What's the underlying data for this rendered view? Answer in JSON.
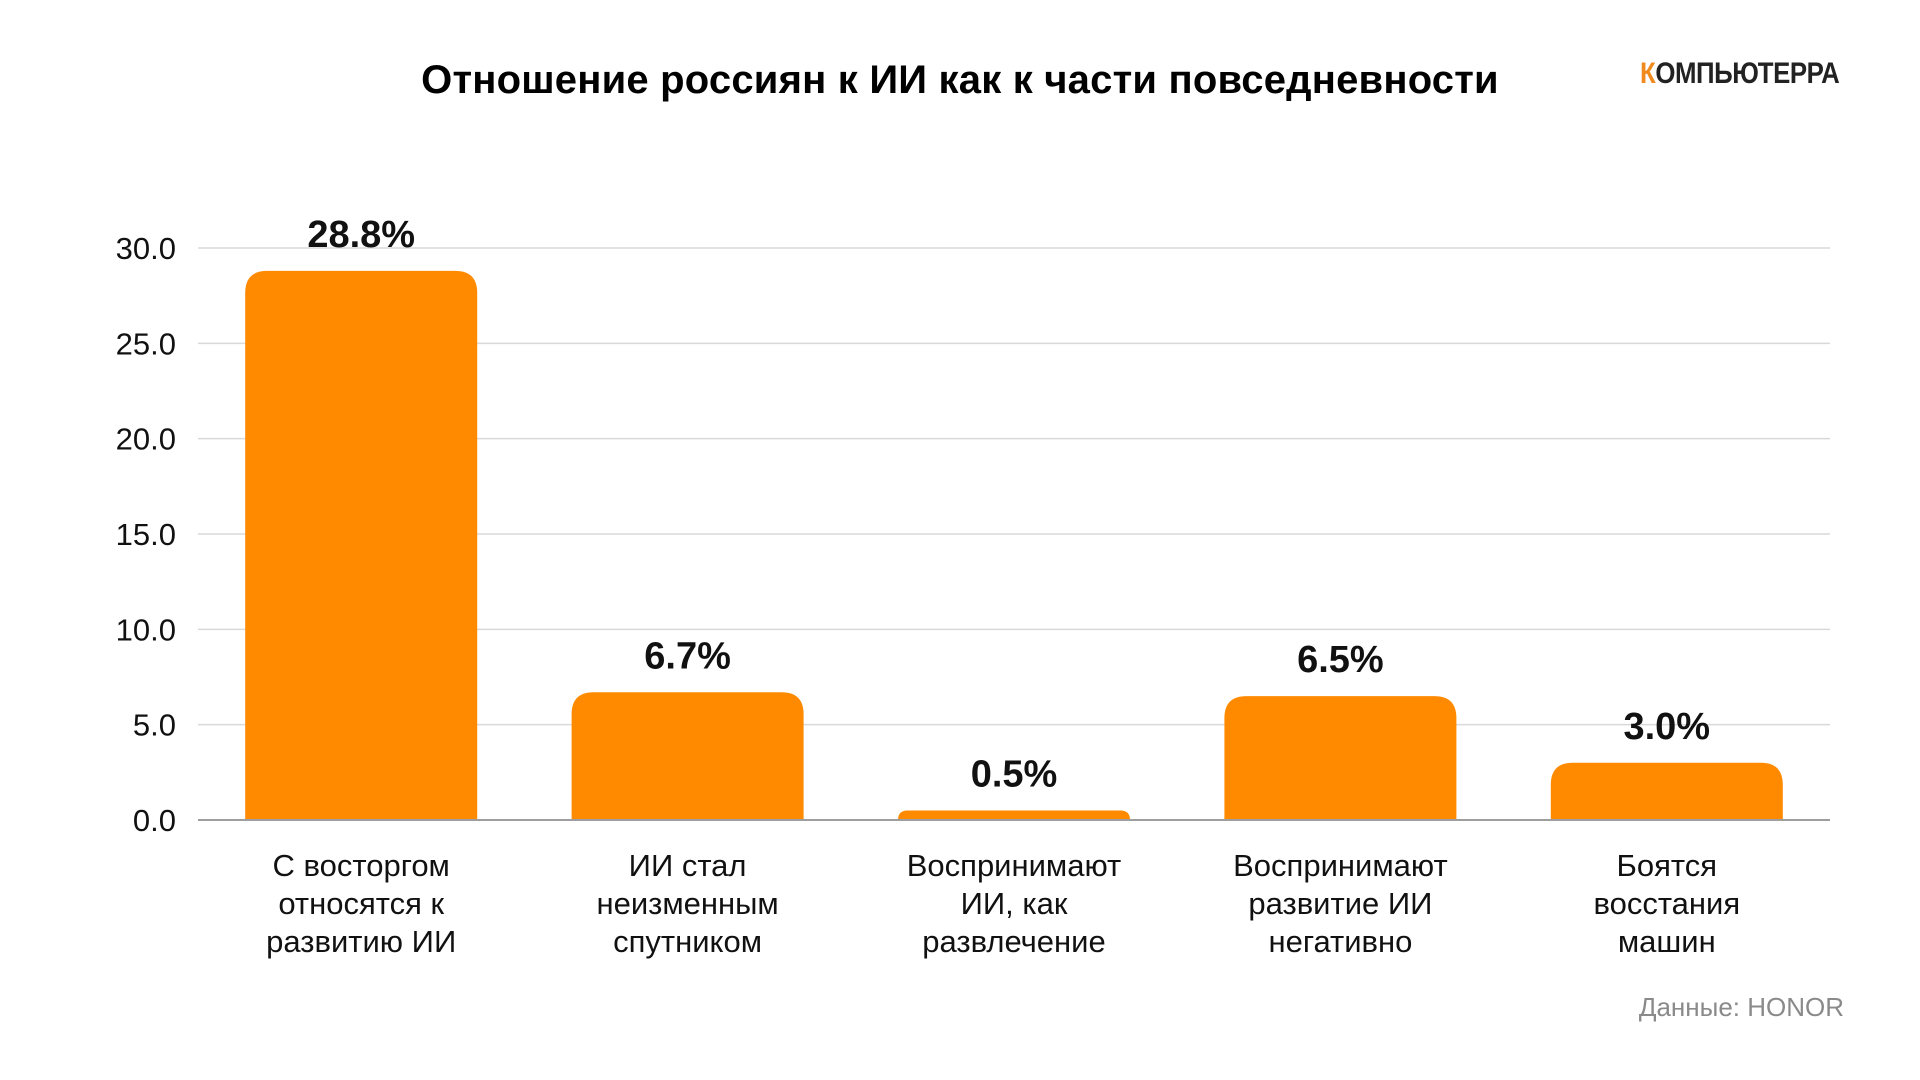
{
  "header": {
    "title": "Отношение россиян к ИИ как к части повседневности",
    "logo_first_letter": "К",
    "logo_rest": "ОМПЬЮТЕРРА",
    "logo_icon": "kompyuterra-wordmark"
  },
  "footer": {
    "source": "Данные: HONOR"
  },
  "colors": {
    "bar": "#ff8a00",
    "grid": "#d9d9d9",
    "axis": "#9e9e9e",
    "logo_accent": "#f08a1c",
    "source_text": "#8a8a8a"
  },
  "chart_data": {
    "type": "bar",
    "title": "Отношение россиян к ИИ как к части повседневности",
    "xlabel": "",
    "ylabel": "",
    "ylim": [
      0,
      30
    ],
    "yticks": [
      "0.0",
      "5.0",
      "10.0",
      "15.0",
      "20.0",
      "25.0",
      "30.0"
    ],
    "grid": true,
    "legend": "none",
    "categories": [
      [
        "С восторгом",
        "относятся к",
        "развитию ИИ"
      ],
      [
        "ИИ стал",
        "неизменным",
        "спутником"
      ],
      [
        "Воспринимают",
        "ИИ, как",
        "развлечение"
      ],
      [
        "Воспринимают",
        "развитие ИИ",
        "негативно"
      ],
      [
        "Боятся",
        "восстания",
        "машин"
      ]
    ],
    "values": [
      28.8,
      6.7,
      0.5,
      6.5,
      3.0
    ],
    "value_labels": [
      "28.8%",
      "6.7%",
      "0.5%",
      "6.5%",
      "3.0%"
    ]
  }
}
